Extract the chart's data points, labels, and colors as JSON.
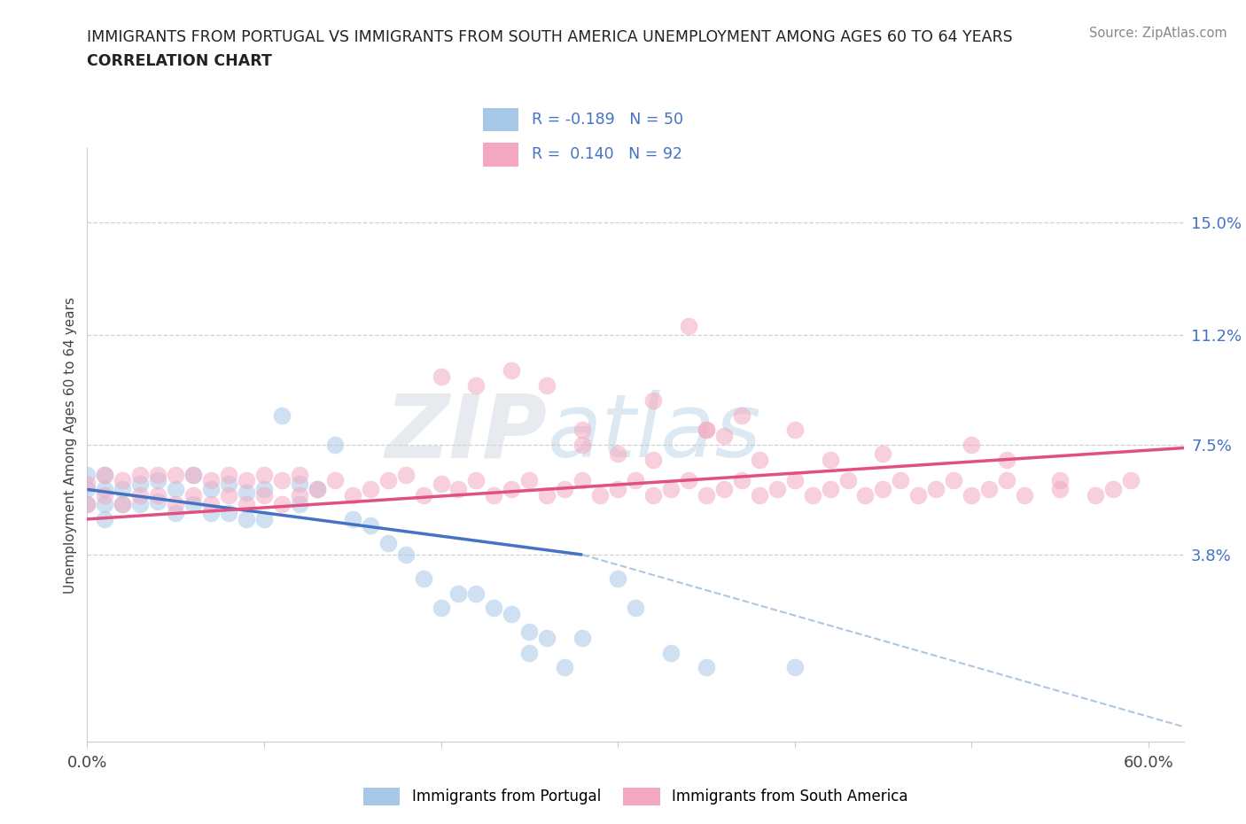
{
  "title_line1": "IMMIGRANTS FROM PORTUGAL VS IMMIGRANTS FROM SOUTH AMERICA UNEMPLOYMENT AMONG AGES 60 TO 64 YEARS",
  "title_line2": "CORRELATION CHART",
  "source_text": "Source: ZipAtlas.com",
  "ylabel": "Unemployment Among Ages 60 to 64 years",
  "xlim": [
    0.0,
    0.62
  ],
  "ylim": [
    -0.025,
    0.175
  ],
  "xtick_vals": [
    0.0,
    0.1,
    0.2,
    0.3,
    0.4,
    0.5,
    0.6
  ],
  "xtick_labels": [
    "0.0%",
    "",
    "",
    "",
    "",
    "",
    "60.0%"
  ],
  "ytick_vals": [
    0.038,
    0.075,
    0.112,
    0.15
  ],
  "ytick_labels": [
    "3.8%",
    "7.5%",
    "11.2%",
    "15.0%"
  ],
  "r_portugal": -0.189,
  "n_portugal": 50,
  "r_south_america": 0.14,
  "n_south_america": 92,
  "color_portugal": "#a8c8e8",
  "color_south_america": "#f4a8c0",
  "color_trend_portugal": "#4472c4",
  "color_trend_sa": "#e05080",
  "color_trend_dashed": "#9ab8d8",
  "watermark_zip": "ZIP",
  "watermark_atlas": "atlas",
  "legend_label_portugal": "Immigrants from Portugal",
  "legend_label_sa": "Immigrants from South America",
  "port_x": [
    0.0,
    0.0,
    0.0,
    0.01,
    0.01,
    0.01,
    0.01,
    0.02,
    0.02,
    0.03,
    0.03,
    0.04,
    0.04,
    0.05,
    0.05,
    0.06,
    0.06,
    0.07,
    0.07,
    0.08,
    0.08,
    0.09,
    0.09,
    0.1,
    0.1,
    0.11,
    0.12,
    0.12,
    0.13,
    0.14,
    0.15,
    0.16,
    0.17,
    0.18,
    0.19,
    0.2,
    0.21,
    0.22,
    0.23,
    0.24,
    0.25,
    0.25,
    0.26,
    0.27,
    0.28,
    0.3,
    0.31,
    0.33,
    0.35,
    0.4
  ],
  "port_y": [
    0.055,
    0.06,
    0.065,
    0.05,
    0.055,
    0.06,
    0.065,
    0.055,
    0.06,
    0.055,
    0.062,
    0.056,
    0.063,
    0.052,
    0.06,
    0.055,
    0.065,
    0.052,
    0.06,
    0.052,
    0.062,
    0.05,
    0.059,
    0.05,
    0.06,
    0.085,
    0.055,
    0.062,
    0.06,
    0.075,
    0.05,
    0.048,
    0.042,
    0.038,
    0.03,
    0.02,
    0.025,
    0.025,
    0.02,
    0.018,
    0.005,
    0.012,
    0.01,
    0.0,
    0.01,
    0.03,
    0.02,
    0.005,
    0.0,
    0.0
  ],
  "sa_x": [
    0.0,
    0.0,
    0.01,
    0.01,
    0.02,
    0.02,
    0.03,
    0.03,
    0.04,
    0.04,
    0.05,
    0.05,
    0.06,
    0.06,
    0.07,
    0.07,
    0.08,
    0.08,
    0.09,
    0.09,
    0.1,
    0.1,
    0.11,
    0.11,
    0.12,
    0.12,
    0.13,
    0.14,
    0.15,
    0.16,
    0.17,
    0.18,
    0.19,
    0.2,
    0.21,
    0.22,
    0.23,
    0.24,
    0.25,
    0.26,
    0.27,
    0.28,
    0.29,
    0.3,
    0.31,
    0.32,
    0.33,
    0.34,
    0.35,
    0.36,
    0.37,
    0.38,
    0.39,
    0.4,
    0.41,
    0.42,
    0.43,
    0.44,
    0.45,
    0.46,
    0.47,
    0.48,
    0.49,
    0.5,
    0.51,
    0.52,
    0.53,
    0.55,
    0.55,
    0.57,
    0.58,
    0.59,
    0.28,
    0.3,
    0.32,
    0.35,
    0.36,
    0.38,
    0.42,
    0.45,
    0.5,
    0.52,
    0.34,
    0.2,
    0.22,
    0.24,
    0.26,
    0.28,
    0.32,
    0.35,
    0.37,
    0.4
  ],
  "sa_y": [
    0.055,
    0.062,
    0.058,
    0.065,
    0.055,
    0.063,
    0.058,
    0.065,
    0.058,
    0.065,
    0.055,
    0.065,
    0.058,
    0.065,
    0.055,
    0.063,
    0.058,
    0.065,
    0.055,
    0.063,
    0.058,
    0.065,
    0.055,
    0.063,
    0.058,
    0.065,
    0.06,
    0.063,
    0.058,
    0.06,
    0.063,
    0.065,
    0.058,
    0.062,
    0.06,
    0.063,
    0.058,
    0.06,
    0.063,
    0.058,
    0.06,
    0.063,
    0.058,
    0.06,
    0.063,
    0.058,
    0.06,
    0.063,
    0.058,
    0.06,
    0.063,
    0.058,
    0.06,
    0.063,
    0.058,
    0.06,
    0.063,
    0.058,
    0.06,
    0.063,
    0.058,
    0.06,
    0.063,
    0.058,
    0.06,
    0.063,
    0.058,
    0.06,
    0.063,
    0.058,
    0.06,
    0.063,
    0.075,
    0.072,
    0.07,
    0.08,
    0.078,
    0.07,
    0.07,
    0.072,
    0.075,
    0.07,
    0.115,
    0.098,
    0.095,
    0.1,
    0.095,
    0.08,
    0.09,
    0.08,
    0.085,
    0.08
  ],
  "trend_port_x0": 0.0,
  "trend_port_x1": 0.28,
  "trend_port_y0": 0.06,
  "trend_port_y1": 0.038,
  "trend_dash_x0": 0.28,
  "trend_dash_x1": 0.62,
  "trend_dash_y0": 0.038,
  "trend_dash_y1": -0.02,
  "trend_sa_x0": 0.0,
  "trend_sa_x1": 0.62,
  "trend_sa_y0": 0.05,
  "trend_sa_y1": 0.074
}
